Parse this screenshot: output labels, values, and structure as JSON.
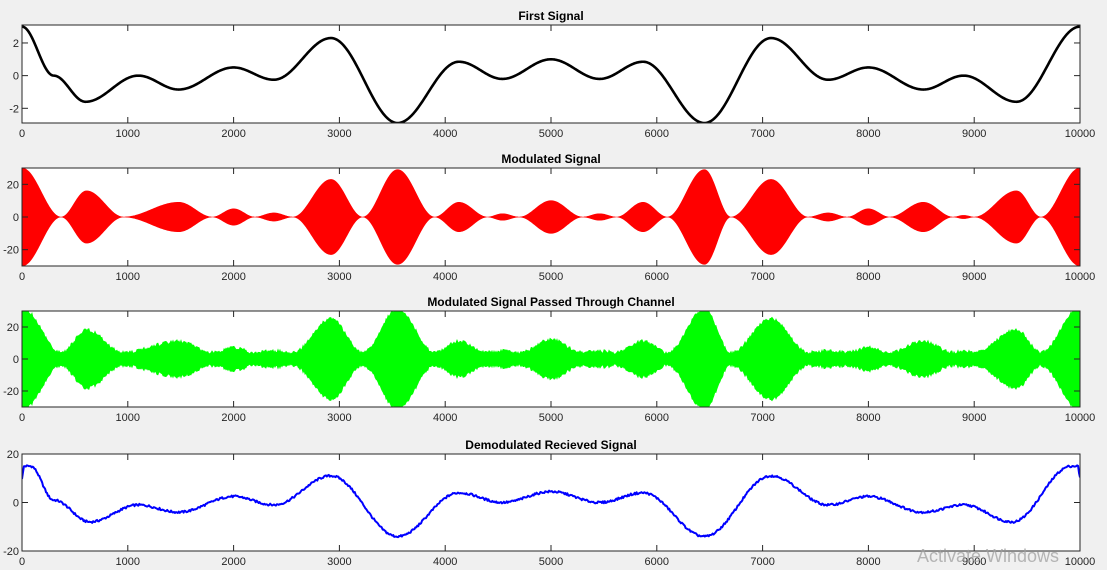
{
  "watermark": "Activate Windows",
  "chart_data": [
    {
      "type": "line",
      "title": "First Signal",
      "color": "#000000",
      "xlim": [
        0,
        10000
      ],
      "ylim": [
        -2.9,
        3.1
      ],
      "xticks": [
        0,
        1000,
        2000,
        3000,
        4000,
        5000,
        6000,
        7000,
        8000,
        9000,
        10000
      ],
      "yticks": [
        2,
        0,
        -2
      ],
      "ytick_labels": [
        "2",
        "0",
        "-2"
      ],
      "x": [
        0,
        300,
        600,
        1100,
        1480,
        2000,
        2380,
        2920,
        3550,
        4130,
        4540,
        5000,
        5460,
        5870,
        6450,
        7080,
        7620,
        8000,
        8520,
        8900,
        9400,
        10000
      ],
      "y": [
        3.0,
        0.0,
        -1.6,
        0.0,
        -0.85,
        0.5,
        -0.25,
        2.3,
        -2.9,
        0.85,
        -0.2,
        1.0,
        -0.2,
        0.85,
        -2.9,
        2.3,
        -0.25,
        0.5,
        -0.85,
        0.0,
        -1.6,
        3.0
      ]
    },
    {
      "type": "area",
      "title": "Modulated Signal",
      "color": "#ff0000",
      "xlim": [
        0,
        10000
      ],
      "ylim": [
        -30,
        30
      ],
      "xticks": [
        0,
        1000,
        2000,
        3000,
        4000,
        5000,
        6000,
        7000,
        8000,
        9000,
        10000
      ],
      "yticks": [
        20,
        0,
        -20
      ],
      "ytick_labels": [
        "20",
        "0",
        "-20"
      ],
      "x": [
        0,
        370,
        610,
        960,
        1480,
        1800,
        2000,
        2200,
        2380,
        2560,
        2920,
        3220,
        3550,
        3900,
        4130,
        4400,
        4540,
        4700,
        5000,
        5300,
        5460,
        5620,
        5870,
        6100,
        6450,
        6700,
        7080,
        7430,
        7620,
        7800,
        8000,
        8200,
        8520,
        8800,
        8900,
        9000,
        9400,
        9630,
        10000
      ],
      "envelope": [
        30,
        0,
        16,
        0,
        9,
        0,
        5,
        0,
        2.5,
        0,
        23,
        0,
        29,
        0,
        9,
        0,
        2,
        0,
        10,
        0,
        2,
        0,
        9,
        0,
        29,
        0,
        23,
        0,
        2.5,
        0,
        5,
        0,
        9,
        0,
        1,
        0,
        16,
        0,
        30
      ]
    },
    {
      "type": "area",
      "title": "Modulated Signal Passed Through Channel",
      "color": "#00ff00",
      "xlim": [
        0,
        10000
      ],
      "ylim": [
        -30,
        30
      ],
      "xticks": [
        0,
        1000,
        2000,
        3000,
        4000,
        5000,
        6000,
        7000,
        8000,
        9000,
        10000
      ],
      "yticks": [
        20,
        0,
        -20
      ],
      "ytick_labels": [
        "20",
        "0",
        "-20"
      ],
      "x": [
        0,
        370,
        610,
        960,
        1480,
        1800,
        2000,
        2200,
        2380,
        2560,
        2920,
        3220,
        3550,
        3900,
        4130,
        4400,
        4540,
        4700,
        5000,
        5300,
        5460,
        5620,
        5870,
        6100,
        6450,
        6700,
        7080,
        7430,
        7620,
        7800,
        8000,
        8200,
        8520,
        8800,
        8900,
        9000,
        9400,
        9630,
        10000
      ],
      "envelope": [
        31,
        3,
        17,
        3,
        10,
        3,
        6,
        3,
        4,
        3,
        24,
        3,
        30,
        3,
        10,
        3,
        4,
        3,
        11,
        3,
        4,
        3,
        10,
        3,
        30,
        3,
        24,
        3,
        4,
        3,
        6,
        3,
        10,
        3,
        4,
        3,
        17,
        3,
        31
      ]
    },
    {
      "type": "line",
      "title": "Demodulated Recieved Signal",
      "color": "#0000ff",
      "xlim": [
        0,
        10000
      ],
      "ylim": [
        -20,
        20
      ],
      "xticks": [
        0,
        1000,
        2000,
        3000,
        4000,
        5000,
        6000,
        7000,
        8000,
        9000,
        10000
      ],
      "yticks": [
        20,
        0,
        -20
      ],
      "ytick_labels": [
        "20",
        "0",
        "-20"
      ],
      "x": [
        0,
        20,
        80,
        300,
        640,
        1100,
        1480,
        2000,
        2380,
        2920,
        3550,
        4130,
        4540,
        5000,
        5460,
        5870,
        6450,
        7080,
        7620,
        8000,
        8520,
        8900,
        9360,
        9920,
        9980,
        10000
      ],
      "y": [
        10,
        15,
        15,
        1,
        -8,
        -1,
        -4,
        2.5,
        -1,
        11,
        -14,
        4,
        0,
        4.5,
        0,
        4,
        -14,
        11,
        -1,
        2.5,
        -4,
        -1,
        -8,
        15,
        15,
        10
      ]
    }
  ]
}
